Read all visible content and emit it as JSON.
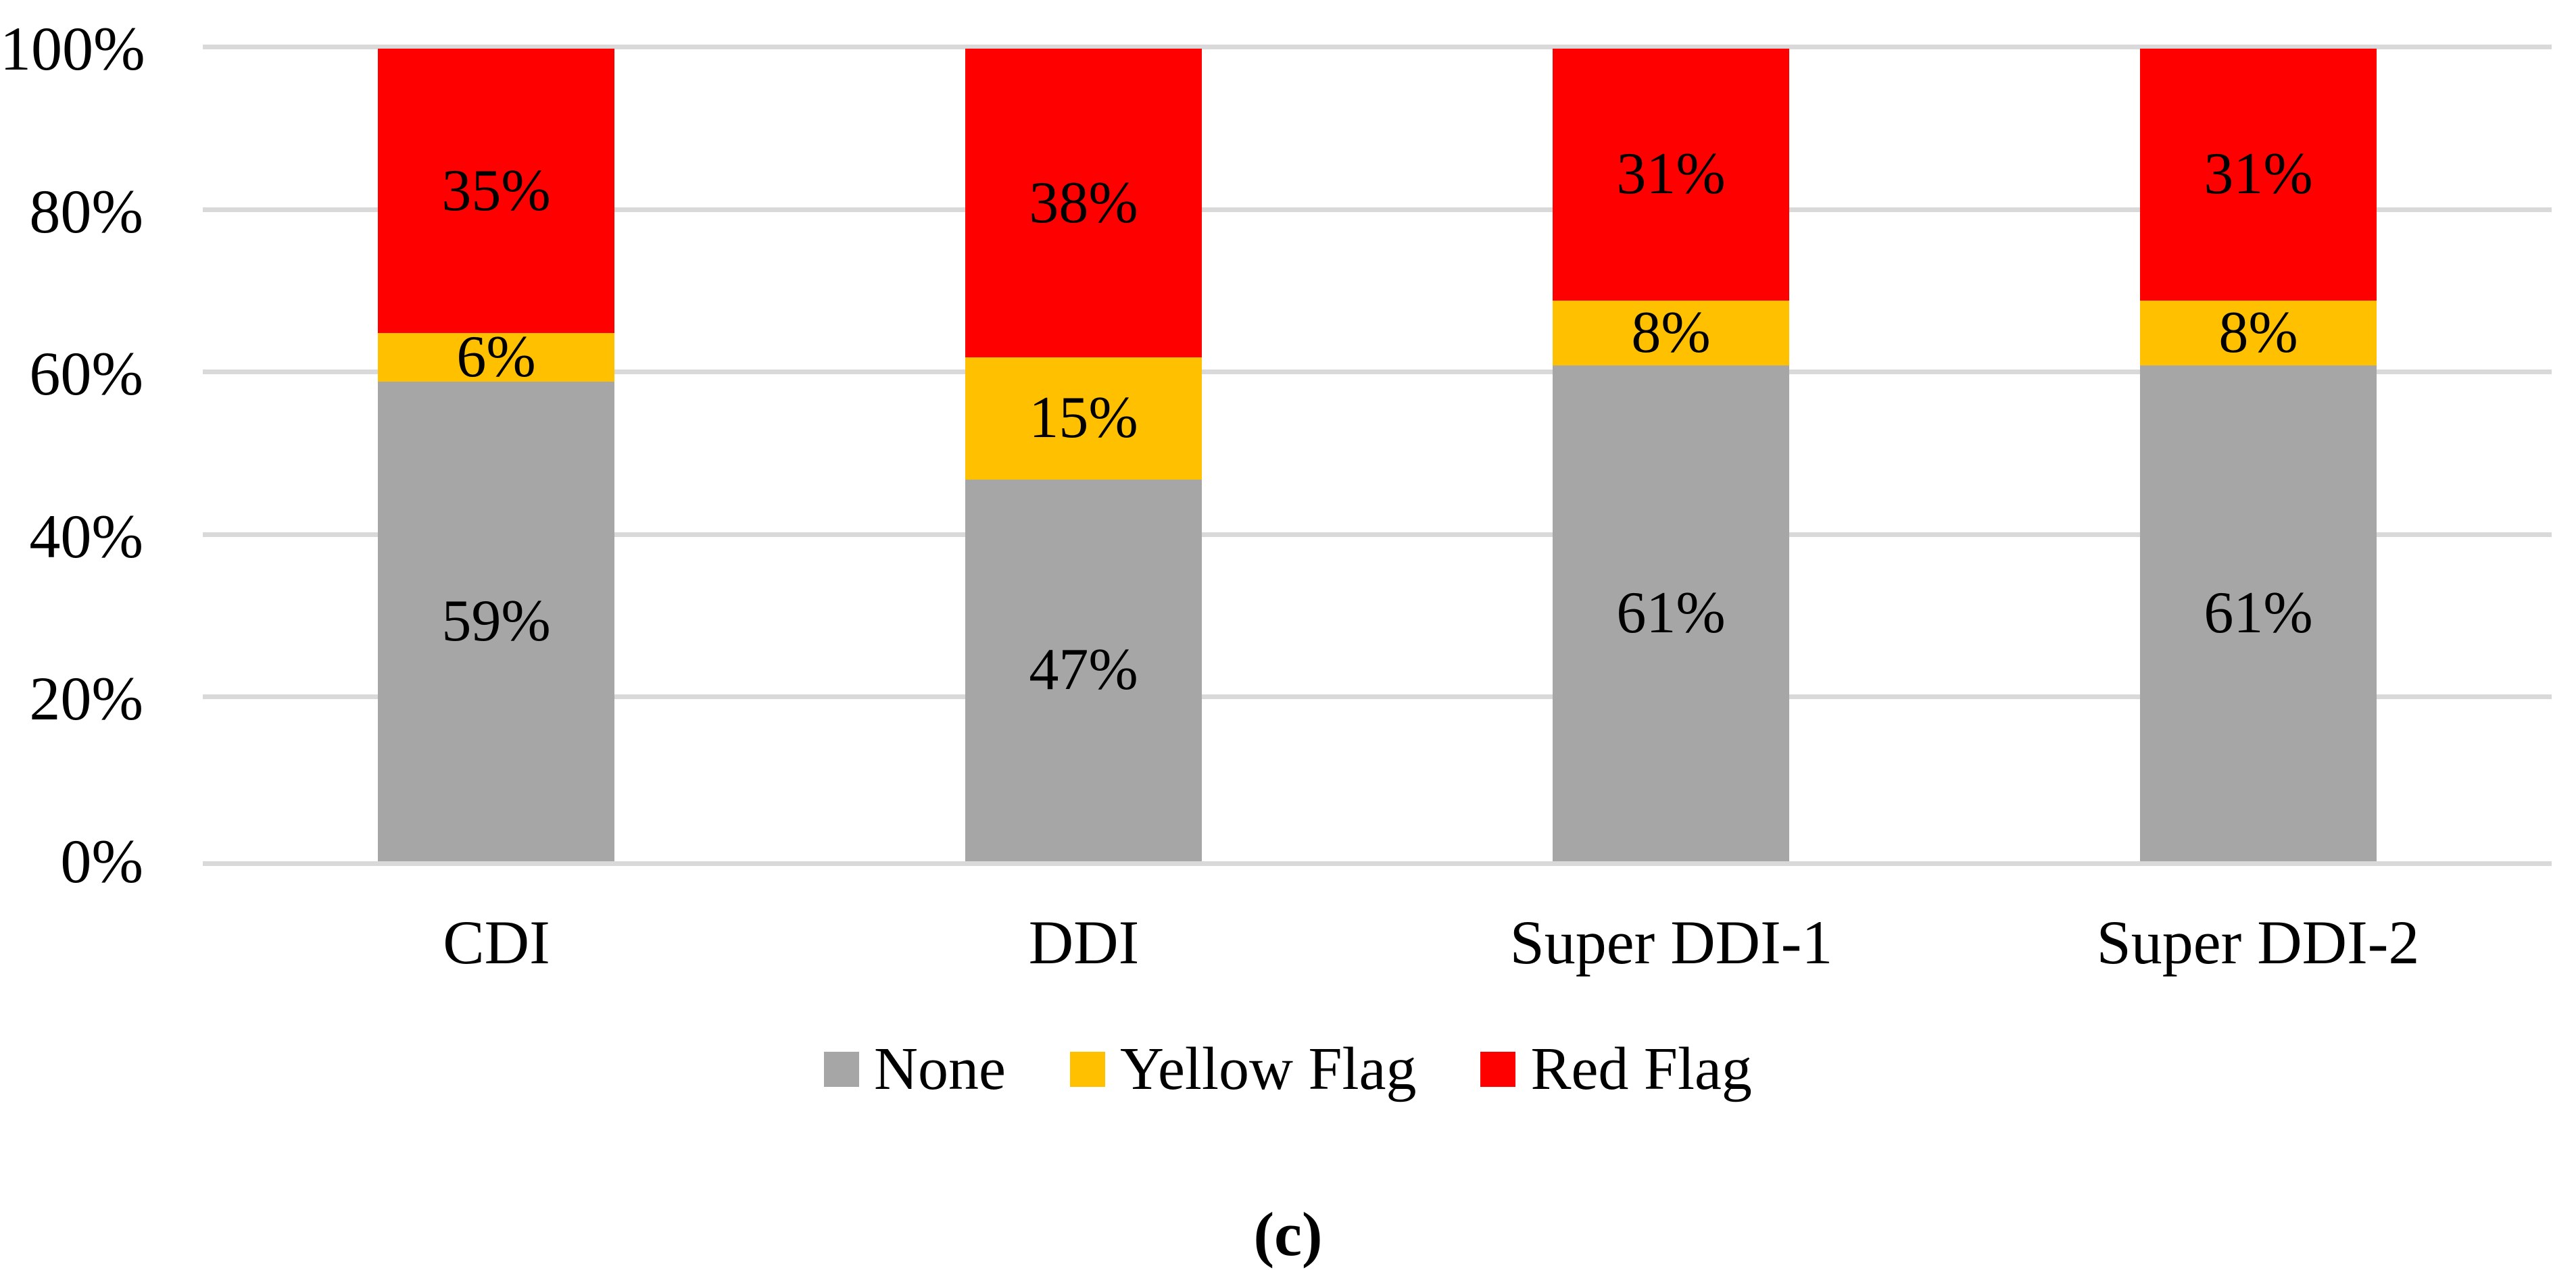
{
  "figure": {
    "caption": "(c)"
  },
  "chart_data": {
    "type": "bar",
    "subtype": "stacked-percent-column",
    "title": "",
    "xlabel": "",
    "ylabel": "",
    "categories": [
      "CDI",
      "DDI",
      "Super DDI-1",
      "Super DDI-2"
    ],
    "series": [
      {
        "name": "None",
        "color": "#A6A6A6",
        "values": [
          59,
          47,
          61,
          61
        ],
        "value_labels": [
          "59%",
          "47%",
          "61%",
          "61%"
        ]
      },
      {
        "name": "Yellow Flag",
        "color": "#FFC000",
        "values": [
          6,
          15,
          8,
          8
        ],
        "value_labels": [
          "6%",
          "15%",
          "8%",
          "8%"
        ]
      },
      {
        "name": "Red Flag",
        "color": "#FF0000",
        "values": [
          35,
          38,
          31,
          31
        ],
        "value_labels": [
          "35%",
          "38%",
          "31%",
          "31%"
        ]
      }
    ],
    "y_axis": {
      "min": 0,
      "max": 100,
      "tick_step": 20,
      "tick_labels": [
        "0%",
        "20%",
        "40%",
        "60%",
        "80%",
        "100%"
      ]
    },
    "gridlines": {
      "visible": true,
      "color": "#D9D9D9"
    },
    "legend": {
      "position": "bottom",
      "entries": [
        "None",
        "Yellow Flag",
        "Red Flag"
      ]
    },
    "background": "#FFFFFF",
    "text_color": "#000000"
  }
}
